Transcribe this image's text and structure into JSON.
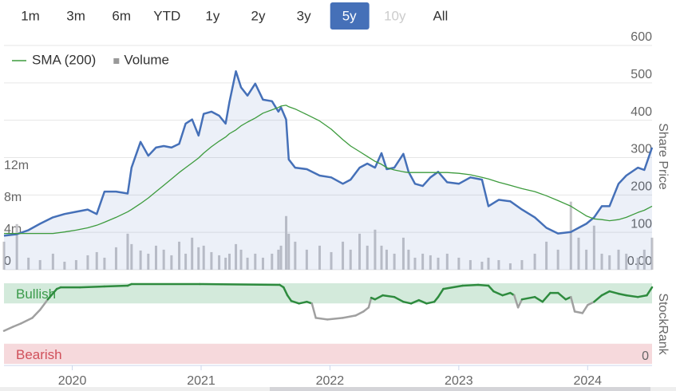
{
  "range_selector": {
    "buttons": [
      "1m",
      "3m",
      "6m",
      "YTD",
      "1y",
      "2y",
      "3y",
      "5y",
      "10y",
      "All"
    ],
    "selected": "5y",
    "disabled": [
      "10y"
    ]
  },
  "chart_data": [
    {
      "type": "line",
      "ylabel": "Share Price",
      "grid": true,
      "legend": "top-left",
      "xlim": [
        2019.47,
        2024.5
      ],
      "x": [
        2019.47,
        2019.57,
        2019.66,
        2019.75,
        2019.85,
        2019.94,
        2020.03,
        2020.12,
        2020.19,
        2020.25,
        2020.34,
        2020.43,
        2020.46,
        2020.53,
        2020.59,
        2020.65,
        2020.71,
        2020.77,
        2020.83,
        2020.88,
        2020.93,
        2020.98,
        2021.02,
        2021.08,
        2021.14,
        2021.19,
        2021.22,
        2021.27,
        2021.31,
        2021.36,
        2021.42,
        2021.48,
        2021.55,
        2021.6,
        2021.62,
        2021.66,
        2021.68,
        2021.73,
        2021.82,
        2021.92,
        2022.01,
        2022.1,
        2022.16,
        2022.23,
        2022.29,
        2022.35,
        2022.4,
        2022.44,
        2022.5,
        2022.57,
        2022.61,
        2022.66,
        2022.72,
        2022.78,
        2022.84,
        2022.91,
        2023.0,
        2023.09,
        2023.18,
        2023.23,
        2023.31,
        2023.4,
        2023.49,
        2023.59,
        2023.68,
        2023.77,
        2023.87,
        2023.93,
        2023.99,
        2024.05,
        2024.11,
        2024.17,
        2024.24,
        2024.3,
        2024.39,
        2024.44,
        2024.5
      ],
      "series": [
        {
          "color": "#4570b8",
          "area": true,
          "values": [
            91,
            95,
            106,
            123,
            140,
            149,
            155,
            161,
            149,
            209,
            209,
            204,
            273,
            342,
            305,
            327,
            331,
            327,
            337,
            391,
            402,
            359,
            417,
            423,
            412,
            391,
            449,
            531,
            488,
            466,
            498,
            455,
            451,
            423,
            434,
            402,
            295,
            273,
            269,
            252,
            247,
            230,
            241,
            273,
            284,
            273,
            312,
            269,
            273,
            310,
            262,
            230,
            224,
            247,
            262,
            234,
            230,
            247,
            241,
            170,
            187,
            183,
            161,
            140,
            112,
            97,
            101,
            112,
            123,
            140,
            170,
            170,
            230,
            252,
            273,
            267,
            327
          ]
        },
        {
          "name": "SMA (200)",
          "color": "#3d9b3d",
          "values": [
            97,
            97,
            97,
            97,
            97,
            101,
            106,
            112,
            119,
            127,
            140,
            155,
            161,
            177,
            192,
            209,
            226,
            243,
            260,
            273,
            286,
            299,
            312,
            329,
            344,
            355,
            364,
            374,
            385,
            395,
            406,
            419,
            428,
            434,
            438,
            440,
            436,
            430,
            415,
            398,
            376,
            348,
            331,
            316,
            303,
            290,
            282,
            273,
            267,
            262,
            260,
            260,
            260,
            260,
            260,
            260,
            258,
            254,
            247,
            243,
            234,
            226,
            217,
            209,
            198,
            185,
            170,
            157,
            144,
            136,
            134,
            131,
            134,
            140,
            153,
            159,
            170
          ]
        },
        {
          "name": "Volume",
          "type": "bar",
          "axis": "y2",
          "color": "#c4c4c8",
          "values": [
            3500000,
            5700000,
            1500000,
            1200000,
            2000000,
            1000000,
            1200000,
            1800000,
            2200000,
            1500000,
            2800000,
            4500000,
            3200000,
            2400000,
            2000000,
            3000000,
            2500000,
            1800000,
            3500000,
            2000000,
            4000000,
            2800000,
            3000000,
            2200000,
            1800000,
            1500000,
            2000000,
            3200000,
            2500000,
            1500000,
            2000000,
            1500000,
            2000000,
            2500000,
            3000000,
            6700000,
            4500000,
            3500000,
            2500000,
            3000000,
            2200000,
            3500000,
            2500000,
            4500000,
            3000000,
            5000000,
            3000000,
            2500000,
            2000000,
            4000000,
            2500000,
            1500000,
            2000000,
            1800000,
            1500000,
            2000000,
            1500000,
            1200000,
            1000000,
            1500000,
            1200000,
            800000,
            1200000,
            2000000,
            3500000,
            2500000,
            8500000,
            4000000,
            2500000,
            5500000,
            2000000,
            1800000,
            2500000,
            2000000,
            1500000,
            2500000,
            4000000
          ]
        }
      ],
      "ylim": [
        0,
        600
      ],
      "yticks": [
        {
          "value": 0,
          "label": "0.00"
        },
        100,
        200,
        300,
        400,
        500,
        600
      ],
      "y2lim": [
        0,
        28000000
      ],
      "y2ticks": [
        0,
        {
          "value": 4000000,
          "label": "4m"
        },
        {
          "value": 8000000,
          "label": "8m"
        },
        {
          "value": 12000000,
          "label": "12m"
        }
      ]
    },
    {
      "type": "line",
      "ylabel": "StockRank",
      "xlim": [
        2019.47,
        2024.5
      ],
      "xticks": [
        2020,
        2021,
        2022,
        2023,
        2024
      ],
      "x": [
        2019.47,
        2019.54,
        2019.6,
        2019.69,
        2019.75,
        2019.81,
        2019.88,
        2019.91,
        2020.06,
        2020.25,
        2020.43,
        2020.46,
        2020.99,
        2021.61,
        2021.64,
        2021.67,
        2021.7,
        2021.76,
        2021.82,
        2021.86,
        2021.89,
        2021.98,
        2022.1,
        2022.2,
        2022.26,
        2022.3,
        2022.32,
        2022.35,
        2022.41,
        2022.5,
        2022.57,
        2022.63,
        2022.69,
        2022.75,
        2022.81,
        2022.84,
        2022.88,
        2023.03,
        2023.15,
        2023.23,
        2023.27,
        2023.34,
        2023.4,
        2023.43,
        2023.46,
        2023.49,
        2023.59,
        2023.65,
        2023.71,
        2023.77,
        2023.83,
        2023.87,
        2023.9,
        2023.96,
        2024.0,
        2024.05,
        2024.11,
        2024.17,
        2024.24,
        2024.3,
        2024.39,
        2024.46,
        2024.5
      ],
      "series": [
        {
          "color": "#2e8b3e",
          "below_color": "#a0a0a0",
          "values": [
            41,
            46,
            50,
            57,
            67,
            80,
            93,
            95,
            95,
            96,
            97,
            99,
            99,
            98,
            95,
            85,
            78,
            75,
            77,
            75,
            57,
            55,
            57,
            60,
            65,
            70,
            82,
            80,
            85,
            83,
            77,
            75,
            79,
            75,
            77,
            83,
            93,
            97,
            98,
            97,
            90,
            85,
            88,
            85,
            70,
            80,
            83,
            77,
            88,
            88,
            80,
            83,
            65,
            63,
            73,
            77,
            85,
            90,
            87,
            85,
            83,
            85,
            95
          ]
        }
      ],
      "ylim": [
        0,
        100
      ],
      "yticks": [
        0
      ],
      "bands": [
        {
          "label": "Bullish",
          "from": 75,
          "to": 100,
          "color": "#d3eadb",
          "text_color": "#3a9a4a"
        },
        {
          "label": "Bearish",
          "from": 0,
          "to": 25,
          "color": "#f6d9dc",
          "text_color": "#d0505a"
        }
      ]
    }
  ]
}
